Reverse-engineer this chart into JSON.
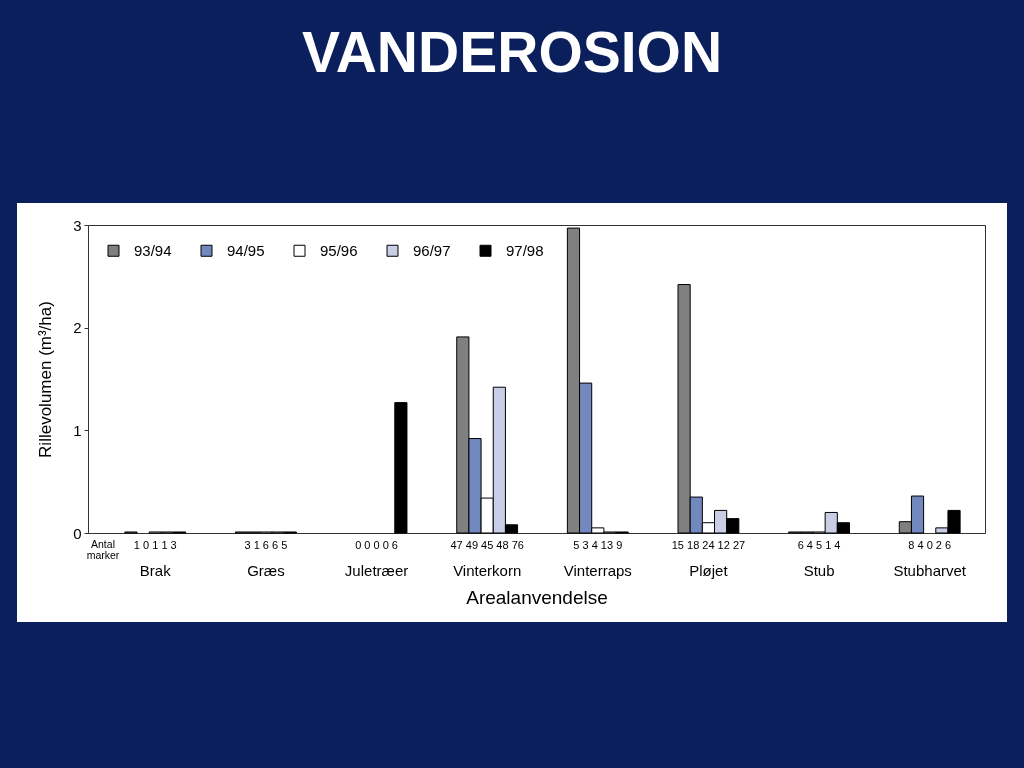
{
  "chart_data": {
    "type": "bar",
    "title": "VANDEROSION",
    "xlabel": "Arealanvendelse",
    "ylabel": "Rillevolumen (m³/ha)",
    "categories": [
      "Brak",
      "Græs",
      "Juletræer",
      "Vinterkorn",
      "Vinterraps",
      "Pløjet",
      "Stub",
      "Stubharvet"
    ],
    "series": [
      {
        "name": "93/94",
        "color": "#808080",
        "values": [
          0.01,
          0.01,
          null,
          1.91,
          2.97,
          2.42,
          0.01,
          0.11
        ]
      },
      {
        "name": "94/95",
        "color": "#7289bf",
        "values": [
          null,
          0.01,
          null,
          0.92,
          1.46,
          0.35,
          0.01,
          0.36
        ]
      },
      {
        "name": "95/96",
        "color": "#ffffff",
        "values": [
          0.01,
          0.01,
          null,
          0.34,
          0.05,
          0.1,
          0.01,
          null
        ]
      },
      {
        "name": "96/97",
        "color": "#c9cde6",
        "values": [
          0.01,
          0.01,
          null,
          1.42,
          0.01,
          0.22,
          0.2,
          0.05
        ]
      },
      {
        "name": "97/98",
        "color": "#000000",
        "values": [
          0.01,
          0.01,
          1.27,
          0.08,
          0.01,
          0.14,
          0.1,
          0.22
        ]
      }
    ],
    "ylim": [
      0,
      3
    ],
    "yticks": [
      0,
      1,
      2,
      3
    ],
    "legend": "top left",
    "annotations": [
      "Antal marker",
      "1 0 1 1 3",
      "3 1 6 6 5",
      "0 0 0 0 6",
      "47 49 45 48 76",
      "5 3 4 13 9",
      "15 18 24 12 27",
      "6 4 5 1 4",
      "8 4 0 2 6"
    ]
  }
}
